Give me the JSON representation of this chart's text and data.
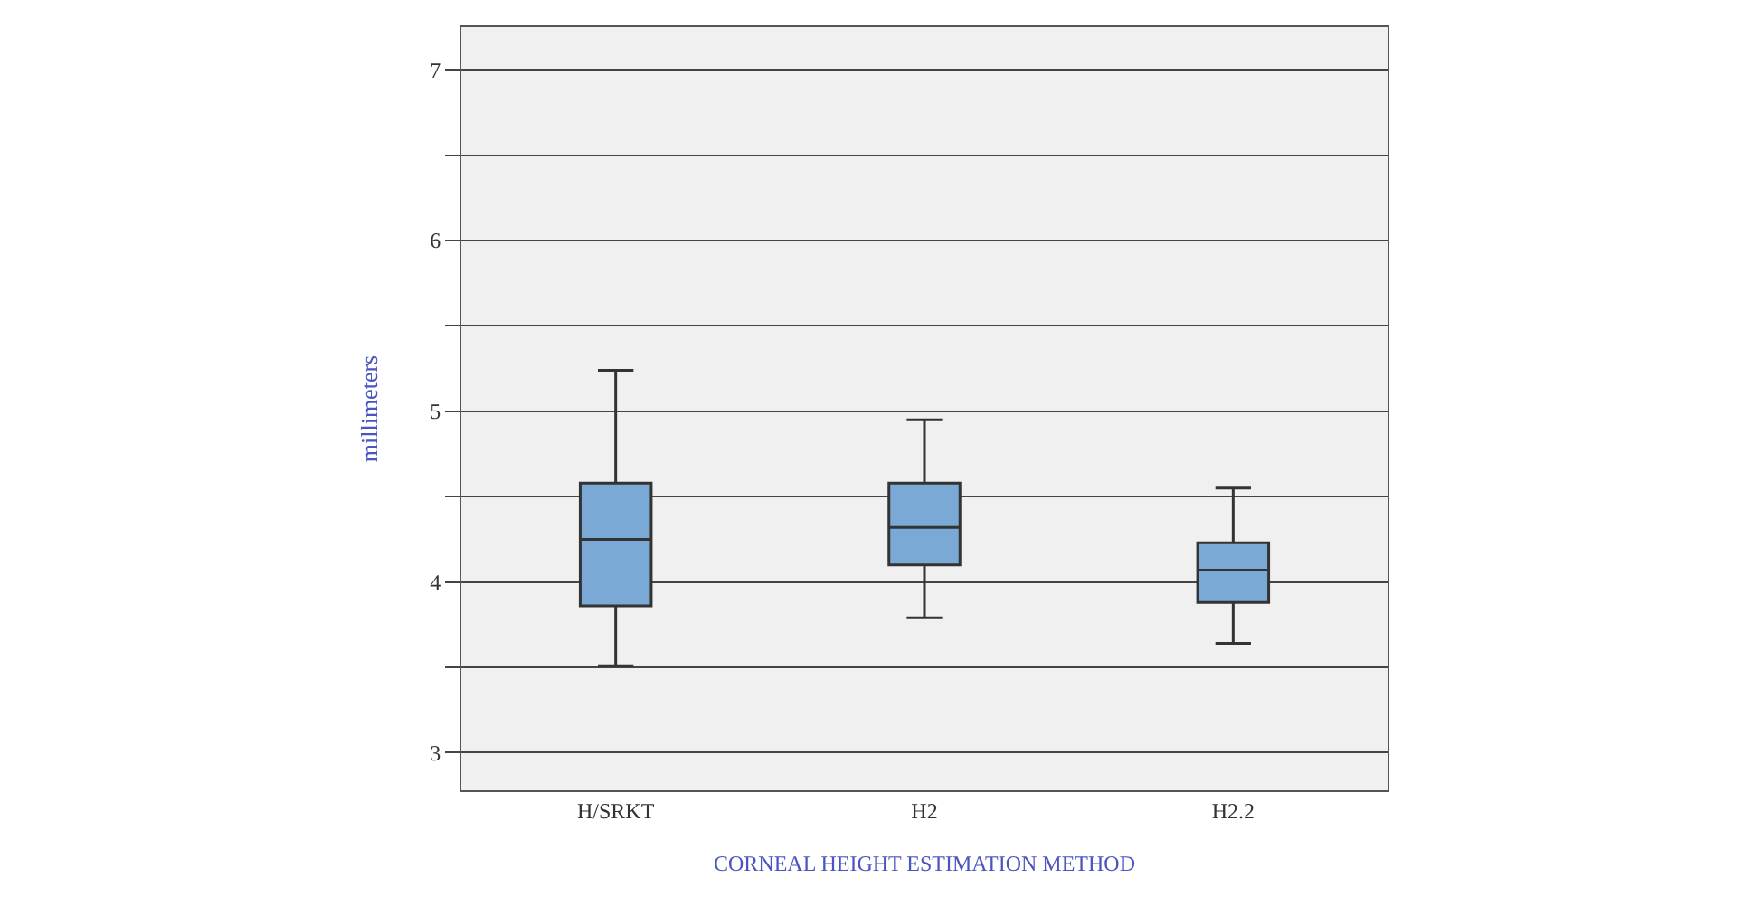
{
  "chart_data": {
    "type": "box",
    "xlabel": "CORNEAL HEIGHT ESTIMATION METHOD",
    "ylabel": "millimeters",
    "categories": [
      "H/SRKT",
      "H2",
      "H2.2"
    ],
    "series": [
      {
        "color": "#7aa9d6",
        "boxes": [
          {
            "low": 3.51,
            "q1": 3.86,
            "median": 4.25,
            "q3": 4.58,
            "high": 5.24
          },
          {
            "low": 3.79,
            "q1": 4.1,
            "median": 4.32,
            "q3": 4.58,
            "high": 4.95
          },
          {
            "low": 3.64,
            "q1": 3.88,
            "median": 4.07,
            "q3": 4.23,
            "high": 4.55
          }
        ]
      }
    ],
    "ylim": [
      2.78,
      7.25
    ],
    "yticks": [
      3,
      {
        "value": 3.5,
        "label": null
      },
      4,
      {
        "value": 4.5,
        "label": null
      },
      5,
      {
        "value": 5.5,
        "label": null
      },
      6,
      {
        "value": 6.5,
        "label": null
      },
      7
    ],
    "grid": "y"
  }
}
